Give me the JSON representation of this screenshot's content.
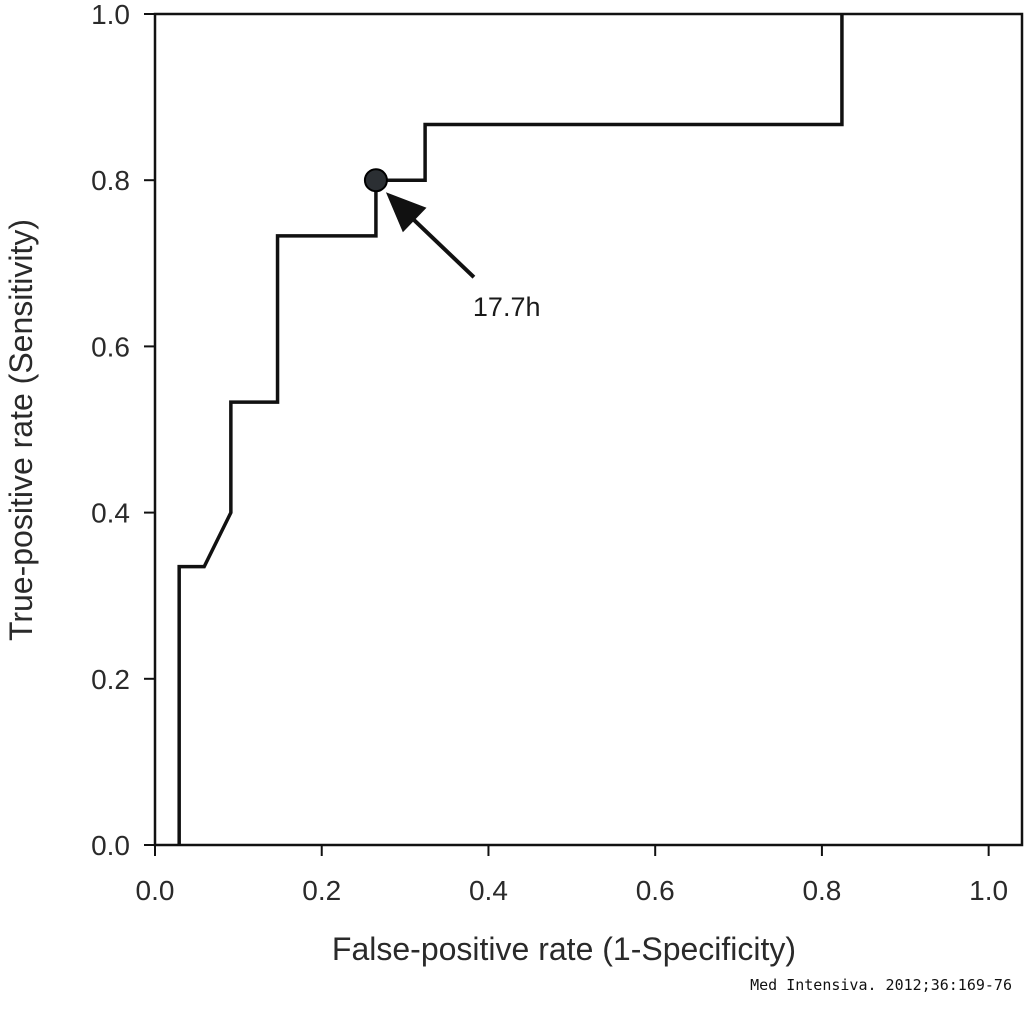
{
  "chart_data": {
    "type": "line",
    "xlabel": "False-positive rate (1-Specificity)",
    "ylabel": "True-positive rate (Sensitivity)",
    "xlim": [
      0,
      1.04
    ],
    "ylim": [
      0,
      1.0
    ],
    "x_ticks": [
      {
        "value": 0.0,
        "label": "0.0"
      },
      {
        "value": 0.2,
        "label": "0.2"
      },
      {
        "value": 0.4,
        "label": "0.4"
      },
      {
        "value": 0.6,
        "label": "0.6"
      },
      {
        "value": 0.8,
        "label": "0.8"
      },
      {
        "value": 1.0,
        "label": "1.0"
      }
    ],
    "y_ticks": [
      {
        "value": 0.0,
        "label": "0.0"
      },
      {
        "value": 0.2,
        "label": "0.2"
      },
      {
        "value": 0.4,
        "label": "0.4"
      },
      {
        "value": 0.6,
        "label": "0.6"
      },
      {
        "value": 0.8,
        "label": "0.8"
      },
      {
        "value": 1.0,
        "label": "1.0"
      }
    ],
    "grid": false,
    "series": [
      {
        "x": [
          0.029,
          0.029,
          0.059,
          0.091,
          0.091,
          0.147,
          0.147,
          0.265,
          0.265,
          0.324,
          0.324,
          0.824,
          0.824
        ],
        "y": [
          0.0,
          0.335,
          0.335,
          0.4,
          0.533,
          0.533,
          0.733,
          0.733,
          0.8,
          0.8,
          0.867,
          0.867,
          1.0
        ]
      }
    ],
    "annotations": [
      {
        "text": "17.7h",
        "point": {
          "x": 0.265,
          "y": 0.8
        },
        "type": "arrow-marker"
      }
    ]
  },
  "credit": "Med Intensiva. 2012;36:169-76"
}
